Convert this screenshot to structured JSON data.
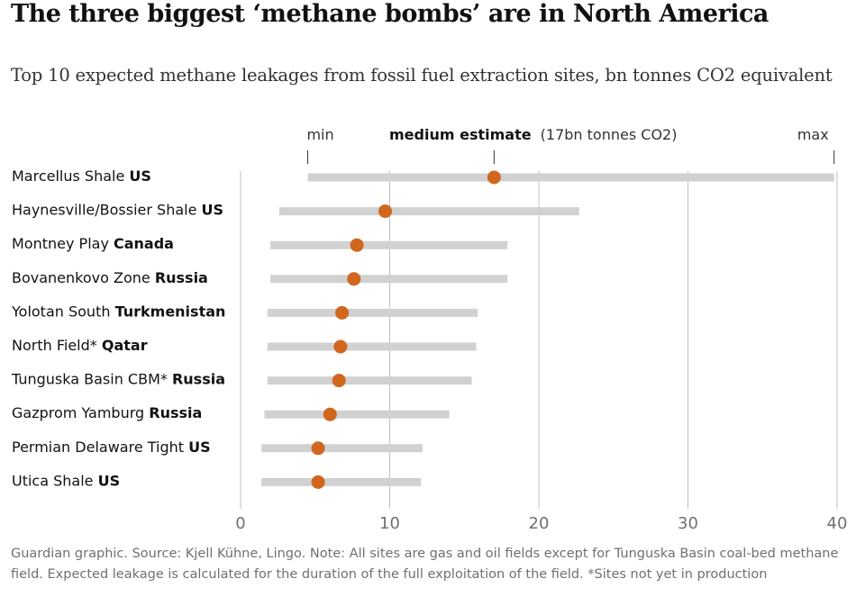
{
  "chart_data": {
    "type": "range-dot",
    "title": "The three biggest ‘methane bombs’ are in North America",
    "subtitle": "Top 10 expected methane leakages from fossil fuel extraction sites, bn tonnes CO2 equivalent",
    "xlim": [
      0,
      40
    ],
    "xticks": [
      0,
      10,
      20,
      30,
      40
    ],
    "legend": {
      "min_label": "min",
      "medium_label": "medium estimate",
      "medium_note": "(17bn tonnes CO2)",
      "max_label": "max"
    },
    "series": [
      {
        "site": "Marcellus Shale",
        "country": "US",
        "min": 4.5,
        "medium": 17,
        "max": 39.8
      },
      {
        "site": "Haynesville/Bossier Shale",
        "country": "US",
        "min": 2.6,
        "medium": 9.7,
        "max": 22.7
      },
      {
        "site": "Montney Play",
        "country": "Canada",
        "min": 2,
        "medium": 7.8,
        "max": 17.9
      },
      {
        "site": "Bovanenkovo Zone",
        "country": "Russia",
        "min": 2,
        "medium": 7.6,
        "max": 17.9
      },
      {
        "site": "Yolotan South",
        "country": "Turkmenistan",
        "min": 1.8,
        "medium": 6.8,
        "max": 15.9
      },
      {
        "site": "North Field*",
        "country": "Qatar",
        "min": 1.8,
        "medium": 6.7,
        "max": 15.8
      },
      {
        "site": "Tunguska Basin CBM*",
        "country": "Russia",
        "min": 1.8,
        "medium": 6.6,
        "max": 15.5
      },
      {
        "site": "Gazprom Yamburg",
        "country": "Russia",
        "min": 1.6,
        "medium": 6,
        "max": 14
      },
      {
        "site": "Permian Delaware Tight",
        "country": "US",
        "min": 1.4,
        "medium": 5.2,
        "max": 12.2
      },
      {
        "site": "Utica Shale",
        "country": "US",
        "min": 1.4,
        "medium": 5.2,
        "max": 12.1
      }
    ],
    "colors": {
      "range": "#d1d1d1",
      "dot": "#d1661f",
      "grid": "#bfbfbf",
      "text": "#121212",
      "tick": "#707070"
    }
  },
  "footer": "Guardian graphic. Source: Kjell Kühne, Lingo. Note: All sites are gas and oil fields except for Tunguska Basin coal-bed methane field. Expected leakage is calculated for the duration of the full exploitation of the field. *Sites not yet in production"
}
